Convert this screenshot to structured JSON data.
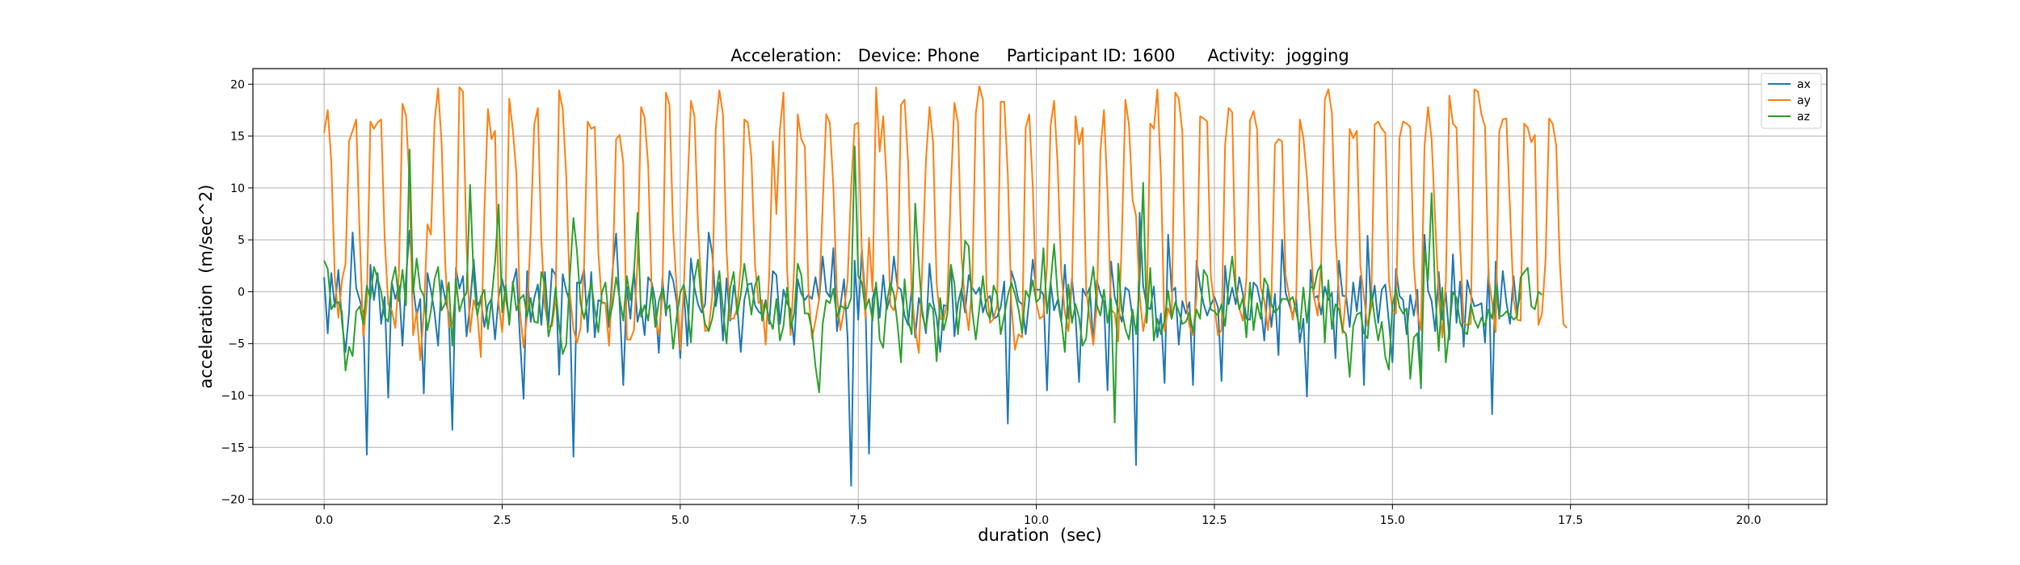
{
  "chart_data": {
    "type": "line",
    "title": "Acceleration:   Device: Phone     Participant ID: 1600      Activity:  jogging",
    "xlabel": "duration  (sec)",
    "ylabel": "acceleration  (m/sec^2)",
    "xlim": [
      -1.0,
      21.1
    ],
    "ylim": [
      -20.5,
      21.5
    ],
    "x_ticks": [
      0.0,
      2.5,
      5.0,
      7.5,
      10.0,
      12.5,
      15.0,
      17.5,
      20.0
    ],
    "x_tick_labels": [
      "0.0",
      "2.5",
      "5.0",
      "7.5",
      "10.0",
      "12.5",
      "15.0",
      "17.5",
      "20.0"
    ],
    "y_ticks": [
      -20,
      -15,
      -10,
      -5,
      0,
      5,
      10,
      15,
      20
    ],
    "y_tick_labels": [
      "−20",
      "−15",
      "−10",
      "−5",
      "0",
      "5",
      "10",
      "15",
      "20"
    ],
    "grid": true,
    "legend_position": "top-right",
    "x_start": 0.0,
    "x_step": 0.05,
    "series": [
      {
        "name": "ax",
        "color": "#1f77b4",
        "values": [
          1.4,
          -4.0,
          1.8,
          -1.5,
          2.1,
          -2.9,
          -5.8,
          -2.0,
          5.7,
          0.4,
          -0.8,
          -2.0,
          -15.7,
          2.6,
          -0.8,
          1.8,
          -3.1,
          -0.5,
          -10.2,
          0.9,
          -0.7,
          0.6,
          -5.2,
          1.4,
          5.9,
          0.5,
          -2.3,
          -0.7,
          -9.8,
          1.8,
          0.1,
          -2.0,
          -5.2,
          1.1,
          -0.7,
          -2.1,
          -13.3,
          2.3,
          0.3,
          1.5,
          -4.3,
          -1.2,
          3.1,
          -1.3,
          -0.8,
          -3.4,
          -1.3,
          -0.7,
          -4.6,
          -0.5,
          1.2,
          -0.5,
          -2.8,
          0.7,
          2.2,
          -4.5,
          -10.3,
          2.0,
          -2.9,
          -0.6,
          0.7,
          -3.2,
          1.9,
          -3.3,
          2.2,
          1.6,
          -8.0,
          1.7,
          0.1,
          -1.0,
          -15.9,
          0.9,
          0.8,
          2.2,
          -3.9,
          1.9,
          -4.4,
          -0.8,
          -1.0,
          -1.1,
          -3.4,
          2.1,
          5.6,
          -1.2,
          -9.0,
          0.5,
          -2.6,
          2.1,
          -2.9,
          -1.4,
          -4.2,
          1.4,
          0.9,
          -0.9,
          -5.9,
          1.3,
          -2.3,
          2.0,
          1.1,
          -1.0,
          -6.4,
          0.2,
          -5.2,
          3.2,
          0.4,
          -1.2,
          -2.0,
          -1.2,
          5.7,
          3.7,
          -1.4,
          0.9,
          -4.7,
          1.3,
          -2.8,
          0.6,
          -1.3,
          -5.8,
          -0.8,
          0.7,
          0.8,
          -1.3,
          -1.9,
          -2.2,
          -0.8,
          -3.1,
          2.0,
          1.6,
          -3.1,
          0.2,
          -1.1,
          -1.7,
          -5.1,
          1.2,
          -0.2,
          -0.8,
          -0.3,
          -0.7,
          1.4,
          -0.8,
          3.4,
          0.0,
          -0.5,
          4.2,
          -3.8,
          -1.3,
          1.2,
          -4.4,
          -18.7,
          3.0,
          -2.7,
          4.1,
          -0.8,
          -15.6,
          -0.7,
          0.7,
          -2.5,
          1.6,
          -1.7,
          -0.4,
          3.4,
          0.5,
          0.2,
          -2.3,
          -3.2,
          0.3,
          -4.4,
          -0.6,
          -1.9,
          -4.0,
          2.7,
          -1.0,
          -2.5,
          -5.8,
          -1.3,
          -1.4,
          2.6,
          -4.3,
          -1.1,
          0.3,
          -2.0,
          1.6,
          0.4,
          -0.2,
          0.4,
          -2.0,
          -0.8,
          -0.4,
          -2.6,
          -2.4,
          -1.5,
          1.0,
          -12.7,
          2.0,
          0.9,
          -0.9,
          -1.2,
          -4.1,
          -0.8,
          3.1,
          0.2,
          0.2,
          -0.3,
          -9.5,
          0.9,
          -1.8,
          -0.8,
          -2.9,
          2.6,
          -2.6,
          1.3,
          -2.3,
          -8.7,
          0.3,
          -0.4,
          0.4,
          -5.0,
          1.1,
          -0.2,
          -1.0,
          -9.5,
          2.9,
          -0.5,
          -1.8,
          -2.9,
          0.4,
          0.1,
          -2.5,
          -16.7,
          7.6,
          0.6,
          -1.4,
          -1.7,
          0.5,
          -4.4,
          -2.1,
          -8.8,
          5.5,
          0.0,
          0.4,
          -5.1,
          -0.9,
          -2.1,
          -1.0,
          -9.0,
          3.0,
          0.5,
          -1.2,
          -2.3,
          -1.3,
          -0.5,
          -1.5,
          -8.6,
          2.5,
          -1.2,
          0.4,
          -1.2,
          1.4,
          -0.2,
          -2.6,
          -2.7,
          0.9,
          0.5,
          -1.2,
          -4.7,
          0.6,
          -3.4,
          -0.2,
          -6.1,
          5.0,
          -0.1,
          -1.2,
          -2.3,
          -0.7,
          -4.9,
          -2.6,
          -10.1,
          2.1,
          -0.6,
          -0.4,
          -2.2,
          0.5,
          -0.8,
          -0.1,
          -6.4,
          3.0,
          -0.4,
          -0.4,
          -3.4,
          0.9,
          -1.9,
          1.5,
          -9.0,
          5.4,
          -1.6,
          0.6,
          -3.0,
          0.2,
          0.7,
          -2.9,
          -6.8,
          2.2,
          -0.4,
          -0.8,
          -4.1,
          -0.3,
          -2.3,
          0.2,
          -9.3,
          5.5,
          0.1,
          -0.9,
          -3.8,
          1.9,
          -2.7,
          -0.1,
          -4.6,
          3.6,
          -3.0,
          1.0,
          -5.3,
          1.1,
          -0.3,
          -1.4,
          -1.3,
          -1.1,
          -4.9,
          2.2,
          -11.8,
          2.9,
          -2.6,
          2.0,
          -1.0,
          -3.1,
          1.5,
          -1.9,
          0.0
        ]
      },
      {
        "name": "ay",
        "color": "#ff7f0e",
        "values": [
          15.3,
          17.5,
          12.6,
          1.3,
          -2.5,
          1.1,
          2.7,
          14.5,
          15.5,
          16.6,
          5.4,
          -4.3,
          -1.0,
          16.4,
          15.7,
          16.3,
          16.6,
          5.1,
          -1.2,
          -1.8,
          -3.5,
          1.7,
          18.1,
          17.0,
          10.4,
          -4.2,
          -1.9,
          -6.6,
          -2.1,
          6.5,
          5.5,
          16.4,
          19.6,
          14.3,
          2.8,
          -3.4,
          -3.1,
          0.0,
          19.7,
          19.3,
          4.2,
          -3.9,
          -0.8,
          -2.0,
          -6.3,
          7.7,
          17.6,
          14.7,
          15.5,
          -1.1,
          -3.9,
          0.6,
          18.6,
          15.6,
          11.4,
          -1.8,
          -5.4,
          -2.2,
          5.8,
          16.1,
          17.7,
          4.9,
          -1.5,
          -3.4,
          -3.3,
          -0.9,
          19.4,
          17.6,
          11.1,
          -0.1,
          -3.6,
          -4.9,
          -3.5,
          2.6,
          16.4,
          15.7,
          15.9,
          3.8,
          -1.1,
          -1.1,
          -5.2,
          1.2,
          14.7,
          15.1,
          12.4,
          -4.6,
          -4.6,
          -3.7,
          3.0,
          17.8,
          16.8,
          12.2,
          -0.1,
          -2.8,
          -4.2,
          -0.4,
          19.2,
          18.0,
          5.9,
          0.3,
          -5.6,
          0.4,
          9.6,
          18.4,
          16.9,
          6.4,
          0.1,
          -3.8,
          -3.6,
          -0.4,
          15.8,
          19.4,
          17.1,
          4.0,
          -2.6,
          -2.6,
          -1.6,
          2.5,
          16.6,
          16.3,
          12.9,
          2.7,
          -1.1,
          -0.8,
          -5.1,
          1.7,
          14.5,
          7.5,
          15.7,
          19.2,
          2.2,
          -4.2,
          2.2,
          17.1,
          14.7,
          14.0,
          0.3,
          -4.5,
          -2.8,
          -0.7,
          8.4,
          17.1,
          16.3,
          10.1,
          -0.3,
          -3.7,
          -1.7,
          1.0,
          10.1,
          16.1,
          16.3,
          3.9,
          -2.5,
          5.2,
          0.0,
          19.7,
          13.5,
          16.9,
          10.3,
          -1.3,
          -1.8,
          0.2,
          18.0,
          18.5,
          12.5,
          -0.1,
          -3.6,
          -5.9,
          2.8,
          12.7,
          17.8,
          14.4,
          0.8,
          -2.6,
          -2.7,
          -1.0,
          10.0,
          18.2,
          16.3,
          3.4,
          -1.1,
          -3.7,
          0.9,
          17.2,
          19.8,
          18.5,
          0.5,
          -3.0,
          -2.6,
          -1.3,
          18.3,
          18.3,
          11.3,
          -1.2,
          -5.6,
          -4.1,
          -4.4,
          15.8,
          17.1,
          10.1,
          -1.1,
          -2.6,
          -2.3,
          2.5,
          16.0,
          18.4,
          12.2,
          1.9,
          -2.0,
          -3.8,
          0.7,
          16.9,
          14.2,
          15.8,
          0.1,
          -2.6,
          -5.1,
          -1.3,
          13.6,
          17.5,
          9.5,
          -1.7,
          -2.1,
          -4.8,
          5.2,
          18.5,
          16.1,
          8.9,
          7.3,
          -0.3,
          -3.8,
          -1.7,
          16.2,
          15.7,
          19.5,
          11.2,
          -3.8,
          -1.6,
          -2.6,
          19.2,
          18.6,
          15.4,
          -0.8,
          -3.3,
          -4.2,
          -0.4,
          16.9,
          16.7,
          16.4,
          1.5,
          -1.3,
          -4.2,
          -3.7,
          14.1,
          17.7,
          17.3,
          0.6,
          -1.6,
          -2.8,
          1.3,
          16.5,
          17.4,
          15.6,
          0.4,
          -0.8,
          -3.7,
          -0.7,
          14.2,
          14.7,
          14.5,
          1.6,
          -0.4,
          -2.7,
          -0.4,
          16.6,
          14.8,
          11.0,
          4.9,
          -0.6,
          -2.3,
          3.0,
          18.5,
          19.5,
          17.2,
          5.4,
          -0.4,
          -4.0,
          -0.2,
          15.7,
          14.8,
          15.5,
          2.4,
          -0.5,
          -3.3,
          -1.6,
          16.1,
          16.4,
          15.7,
          15.3,
          1.1,
          -1.8,
          -2.1,
          14.8,
          16.4,
          16.2,
          15.9,
          2.6,
          -2.0,
          -3.7,
          14.0,
          17.8,
          14.7,
          6.9,
          -0.4,
          -4.4,
          1.0,
          18.9,
          16.2,
          15.8,
          4.5,
          -3.0,
          -3.2,
          -3.1,
          19.5,
          19.3,
          17.1,
          15.9,
          1.4,
          -1.0,
          -3.9,
          15.4,
          16.6,
          16.7,
          8.0,
          -0.7,
          -2.7,
          -2.8,
          16.2,
          15.8,
          14.4,
          15.1,
          -3.2,
          -2.1,
          3.1,
          16.7,
          16.2,
          14.1,
          2.8,
          -3.1,
          -3.5
        ]
      },
      {
        "name": "az",
        "color": "#2ca02c",
        "values": [
          3.0,
          2.2,
          -1.7,
          -1.1,
          -1.0,
          -1.9,
          -7.6,
          -5.3,
          -6.2,
          -1.9,
          -1.4,
          -3.1,
          0.6,
          -0.7,
          2.4,
          1.3,
          0.0,
          -2.4,
          -2.9,
          0.9,
          2.4,
          -0.9,
          2.1,
          -1.3,
          13.7,
          -0.1,
          3.2,
          0.3,
          -0.4,
          -3.7,
          -1.8,
          1.2,
          2.4,
          -1.8,
          -1.1,
          0.9,
          -5.2,
          1.2,
          -1.9,
          -0.7,
          -0.1,
          10.3,
          1.3,
          -2.3,
          -0.5,
          0.2,
          -3.6,
          -0.8,
          2.8,
          8.4,
          -2.0,
          0.6,
          -3.2,
          1.0,
          -1.8,
          -0.7,
          -0.3,
          -2.4,
          -0.6,
          -2.9,
          -3.0,
          1.9,
          0.8,
          -4.3,
          -2.8,
          0.4,
          -3.3,
          -6.0,
          -5.1,
          1.4,
          7.1,
          3.9,
          -1.1,
          -2.6,
          -0.8,
          0.9,
          -1.7,
          -3.9,
          -0.1,
          0.9,
          -2.8,
          -1.3,
          1.4,
          -0.6,
          -2.8,
          1.5,
          -0.8,
          1.9,
          7.6,
          -2.4,
          -1.3,
          -2.8,
          0.4,
          -3.4,
          -0.9,
          0.3,
          -1.8,
          -1.3,
          -5.5,
          -2.4,
          -0.1,
          0.7,
          -1.3,
          -4.9,
          1.2,
          3.1,
          -1.2,
          -3.1,
          -3.8,
          -2.6,
          -0.3,
          2.0,
          -1.7,
          -5.0,
          0.3,
          1.9,
          -2.2,
          -0.3,
          2.7,
          0.3,
          -2.2,
          0.6,
          1.5,
          -2.8,
          -1.1,
          -2.6,
          -3.6,
          -0.7,
          -4.7,
          -3.3,
          0.4,
          -3.5,
          -2.1,
          2.7,
          1.6,
          -2.1,
          -2.1,
          -3.7,
          -7.2,
          -9.7,
          -3.1,
          -0.8,
          -1.1,
          0.3,
          -2.5,
          -1.3,
          -1.6,
          -1.6,
          -0.6,
          14.0,
          1.5,
          0.9,
          -1.7,
          -0.7,
          -2.8,
          0.9,
          -4.6,
          -5.4,
          -1.0,
          0.8,
          -0.2,
          -3.1,
          -6.8,
          1.2,
          -2.7,
          -4.1,
          8.5,
          2.6,
          -2.3,
          -3.6,
          -1.1,
          -1.7,
          -6.7,
          -0.6,
          -3.7,
          -2.2,
          2.6,
          0.8,
          -4.1,
          -0.4,
          4.9,
          4.4,
          -1.9,
          -4.6,
          -1.6,
          1.5,
          -1.9,
          -2.6,
          0.6,
          -0.3,
          -4.1,
          -2.3,
          -0.4,
          0.9,
          -0.2,
          -1.7,
          -4.0,
          0.1,
          -0.6,
          1.1,
          -1.0,
          -0.6,
          4.2,
          -2.1,
          0.8,
          4.6,
          -0.3,
          -2.7,
          -5.8,
          0.7,
          -3.0,
          -1.2,
          -2.5,
          -5.2,
          -4.5,
          0.0,
          2.4,
          -1.3,
          -2.3,
          0.2,
          -3.0,
          -0.7,
          -12.6,
          2.7,
          -1.8,
          -3.6,
          -4.6,
          -1.7,
          -4.1,
          0.9,
          10.5,
          -3.0,
          2.3,
          -4.7,
          -2.6,
          -4.1,
          -2.8,
          0.1,
          -2.6,
          -1.0,
          -1.9,
          -3.1,
          -2.9,
          -2.0,
          -3.9,
          -1.7,
          -2.6,
          2.1,
          1.5,
          -1.7,
          -1.9,
          -2.3,
          -1.2,
          -3.3,
          0.7,
          3.4,
          0.1,
          -1.7,
          -0.6,
          -4.4,
          0.9,
          -3.7,
          -1.1,
          -2.6,
          1.3,
          0.6,
          -1.2,
          -2.0,
          -1.6,
          -0.7,
          -0.7,
          -0.9,
          -0.5,
          -2.0,
          -3.6,
          0.4,
          -3.0,
          0.5,
          0.3,
          2.0,
          2.6,
          -4.9,
          1.1,
          -3.6,
          -1.2,
          -1.7,
          -3.7,
          -4.1,
          -8.2,
          -3.3,
          -2.2,
          -2.0,
          -4.0,
          -4.5,
          0.1,
          -2.5,
          -4.7,
          -2.9,
          -6.3,
          -7.5,
          -1.3,
          0.2,
          -1.5,
          -2.1,
          -1.6,
          -8.4,
          -4.4,
          -4.0,
          -9.1,
          4.0,
          1.1,
          9.5,
          0.0,
          -5.7,
          0.4,
          -6.8,
          -3.5,
          0.0,
          -0.6,
          -3.0,
          -3.8,
          -4.1,
          -1.2,
          -2.7,
          -3.5,
          -2.5,
          -3.3,
          -1.7,
          -2.6,
          0.7,
          -2.4,
          -2.3,
          -1.9,
          -2.2,
          -2.7,
          -2.4,
          1.4,
          1.9,
          2.3,
          -1.4,
          -1.7,
          0.0,
          -0.3
        ]
      }
    ]
  }
}
